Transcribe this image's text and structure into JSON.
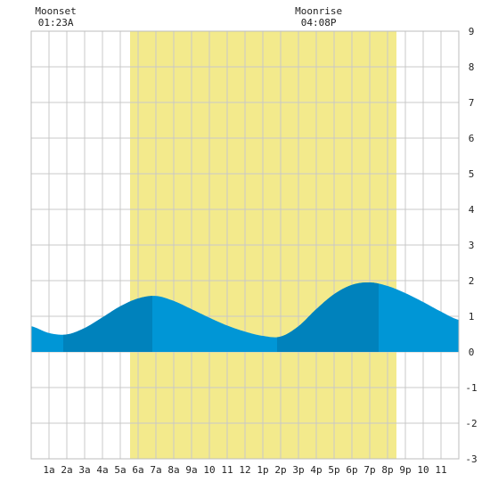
{
  "moon": {
    "moonset_label": "Moonset",
    "moonset_time": "01:23A",
    "moonrise_label": "Moonrise",
    "moonrise_time": "04:08P"
  },
  "chart_data": {
    "type": "area",
    "title": "",
    "xlabel": "",
    "ylabel": "",
    "xlim": [
      0,
      24
    ],
    "ylim": [
      -3,
      9
    ],
    "x_tick_labels": [
      {
        "hour": 1,
        "label": "1a"
      },
      {
        "hour": 2,
        "label": "2a"
      },
      {
        "hour": 3,
        "label": "3a"
      },
      {
        "hour": 4,
        "label": "4a"
      },
      {
        "hour": 5,
        "label": "5a"
      },
      {
        "hour": 6,
        "label": "6a"
      },
      {
        "hour": 7,
        "label": "7a"
      },
      {
        "hour": 8,
        "label": "8a"
      },
      {
        "hour": 9,
        "label": "9a"
      },
      {
        "hour": 10,
        "label": "10"
      },
      {
        "hour": 11,
        "label": "11"
      },
      {
        "hour": 12,
        "label": "12"
      },
      {
        "hour": 13,
        "label": "1p"
      },
      {
        "hour": 14,
        "label": "2p"
      },
      {
        "hour": 15,
        "label": "3p"
      },
      {
        "hour": 16,
        "label": "4p"
      },
      {
        "hour": 17,
        "label": "5p"
      },
      {
        "hour": 18,
        "label": "6p"
      },
      {
        "hour": 19,
        "label": "7p"
      },
      {
        "hour": 20,
        "label": "8p"
      },
      {
        "hour": 21,
        "label": "9p"
      },
      {
        "hour": 22,
        "label": "10"
      },
      {
        "hour": 23,
        "label": "11"
      }
    ],
    "y_ticks": [
      -3,
      -2,
      -1,
      0,
      1,
      2,
      3,
      4,
      5,
      6,
      7,
      8,
      9
    ],
    "moonset_hour": 1.38,
    "moonrise_hour": 16.13,
    "daylight": {
      "start_hour": 5.55,
      "end_hour": 20.5
    },
    "tide_extremes": [
      {
        "hour": 1.8,
        "height": 0.48,
        "kind": "low"
      },
      {
        "hour": 6.8,
        "height": 1.57,
        "kind": "high"
      },
      {
        "hour": 13.8,
        "height": 0.42,
        "kind": "low"
      },
      {
        "hour": 19.5,
        "height": 1.95,
        "kind": "high"
      }
    ],
    "series": [
      {
        "x": [
          0,
          1,
          2,
          3,
          4,
          5,
          6,
          7,
          8,
          9,
          10,
          11,
          12,
          13,
          14,
          15,
          16,
          17,
          18,
          19,
          20,
          21,
          22,
          23,
          24
        ],
        "values": [
          0.72,
          0.53,
          0.49,
          0.67,
          0.97,
          1.28,
          1.5,
          1.57,
          1.43,
          1.2,
          0.96,
          0.74,
          0.57,
          0.45,
          0.43,
          0.72,
          1.2,
          1.62,
          1.88,
          1.95,
          1.85,
          1.65,
          1.4,
          1.13,
          0.9
        ]
      }
    ],
    "grid": true,
    "colors": {
      "daylight": "#f3ea8c",
      "tide": "#0096d6",
      "tide_dark": "#0082bc",
      "grid": "#c8c8c8",
      "night": "#ffffff"
    }
  }
}
